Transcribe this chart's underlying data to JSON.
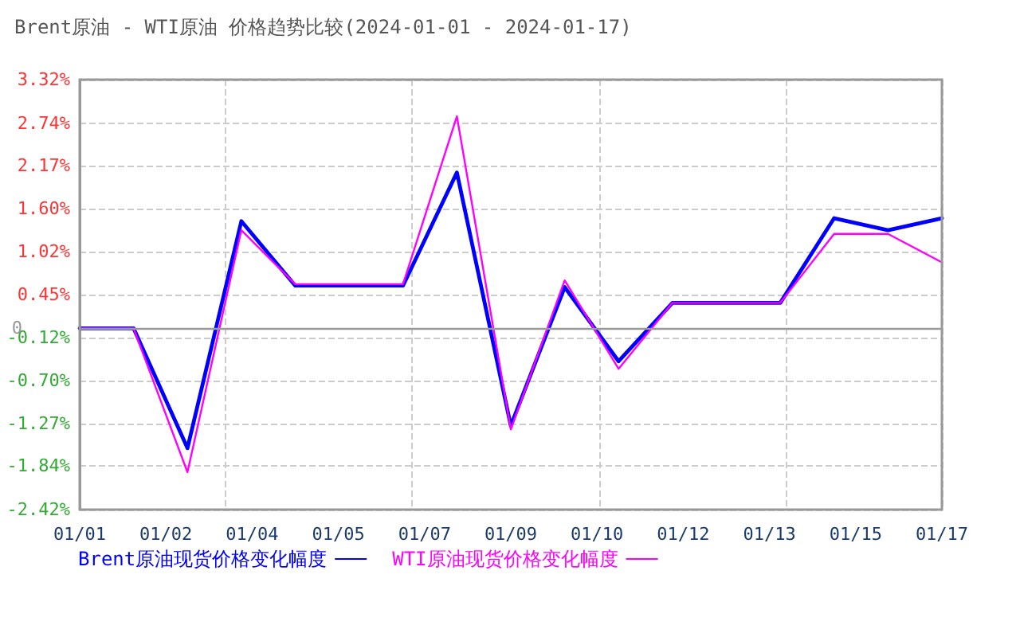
{
  "chart_data": {
    "type": "line",
    "title": "Brent原油 - WTI原油 价格趋势比较(2024-01-01 - 2024-01-17)",
    "x": [
      "2024-01-01",
      "2024-01-02",
      "2024-01-03",
      "2024-01-04",
      "2024-01-05",
      "2024-01-06",
      "2024-01-07",
      "2024-01-08",
      "2024-01-09",
      "2024-01-10",
      "2024-01-11",
      "2024-01-12",
      "2024-01-13",
      "2024-01-14",
      "2024-01-15",
      "2024-01-16",
      "2024-01-17"
    ],
    "series": [
      {
        "name": "Brent原油现货价格变化幅度",
        "color": "#0000ff",
        "values": [
          0,
          0,
          -1.6,
          1.43,
          0.57,
          0.57,
          0.57,
          2.08,
          -1.3,
          0.55,
          -0.44,
          0.34,
          0.34,
          0.34,
          1.47,
          1.31,
          1.47
        ]
      },
      {
        "name": "WTI原油现货价格变化幅度",
        "color": "#ff00ff",
        "values": [
          0,
          0,
          -1.92,
          1.31,
          0.59,
          0.59,
          0.59,
          2.83,
          -1.35,
          0.64,
          -0.54,
          0.34,
          0.34,
          0.34,
          1.26,
          1.26,
          0.88
        ]
      }
    ],
    "xlim": [
      "2024-01-01",
      "2024-01-17"
    ],
    "xticks": [
      {
        "value": "2024-01-01",
        "label": "01/01"
      },
      {
        "value": "2024-01-02T14:24",
        "label": "01/02"
      },
      {
        "value": "2024-01-04T04:48",
        "label": "01/04"
      },
      {
        "value": "2024-01-05T19:12",
        "label": "01/05"
      },
      {
        "value": "2024-01-07T09:36",
        "label": "01/07"
      },
      {
        "value": "2024-01-09",
        "label": "01/09"
      },
      {
        "value": "2024-01-10T14:24",
        "label": "01/10"
      },
      {
        "value": "2024-01-12T04:48",
        "label": "01/12"
      },
      {
        "value": "2024-01-13T19:12",
        "label": "01/13"
      },
      {
        "value": "2024-01-15T09:36",
        "label": "01/15"
      },
      {
        "value": "2024-01-17",
        "label": "01/17"
      }
    ],
    "ylim": [
      -2.42,
      3.32
    ],
    "yticks": [
      {
        "value": -2.42,
        "label": "-2.42%"
      },
      {
        "value": -1.84,
        "label": "-1.84%"
      },
      {
        "value": -1.27,
        "label": "-1.27%"
      },
      {
        "value": -0.7,
        "label": "-0.70%"
      },
      {
        "value": -0.12,
        "label": "-0.12%"
      },
      {
        "value": 0.45,
        "label": "0.45%"
      },
      {
        "value": 1.02,
        "label": "1.02%"
      },
      {
        "value": 1.6,
        "label": "1.60%"
      },
      {
        "value": 2.17,
        "label": "2.17%"
      },
      {
        "value": 2.74,
        "label": "2.74%"
      },
      {
        "value": 3.32,
        "label": "3.32%"
      }
    ],
    "ref_lines": [
      {
        "axis": "y",
        "value": 0,
        "label": "0",
        "color": "#999999"
      }
    ],
    "grid": true,
    "legend": "bottom left",
    "marker": "none",
    "line_style": "solid"
  }
}
